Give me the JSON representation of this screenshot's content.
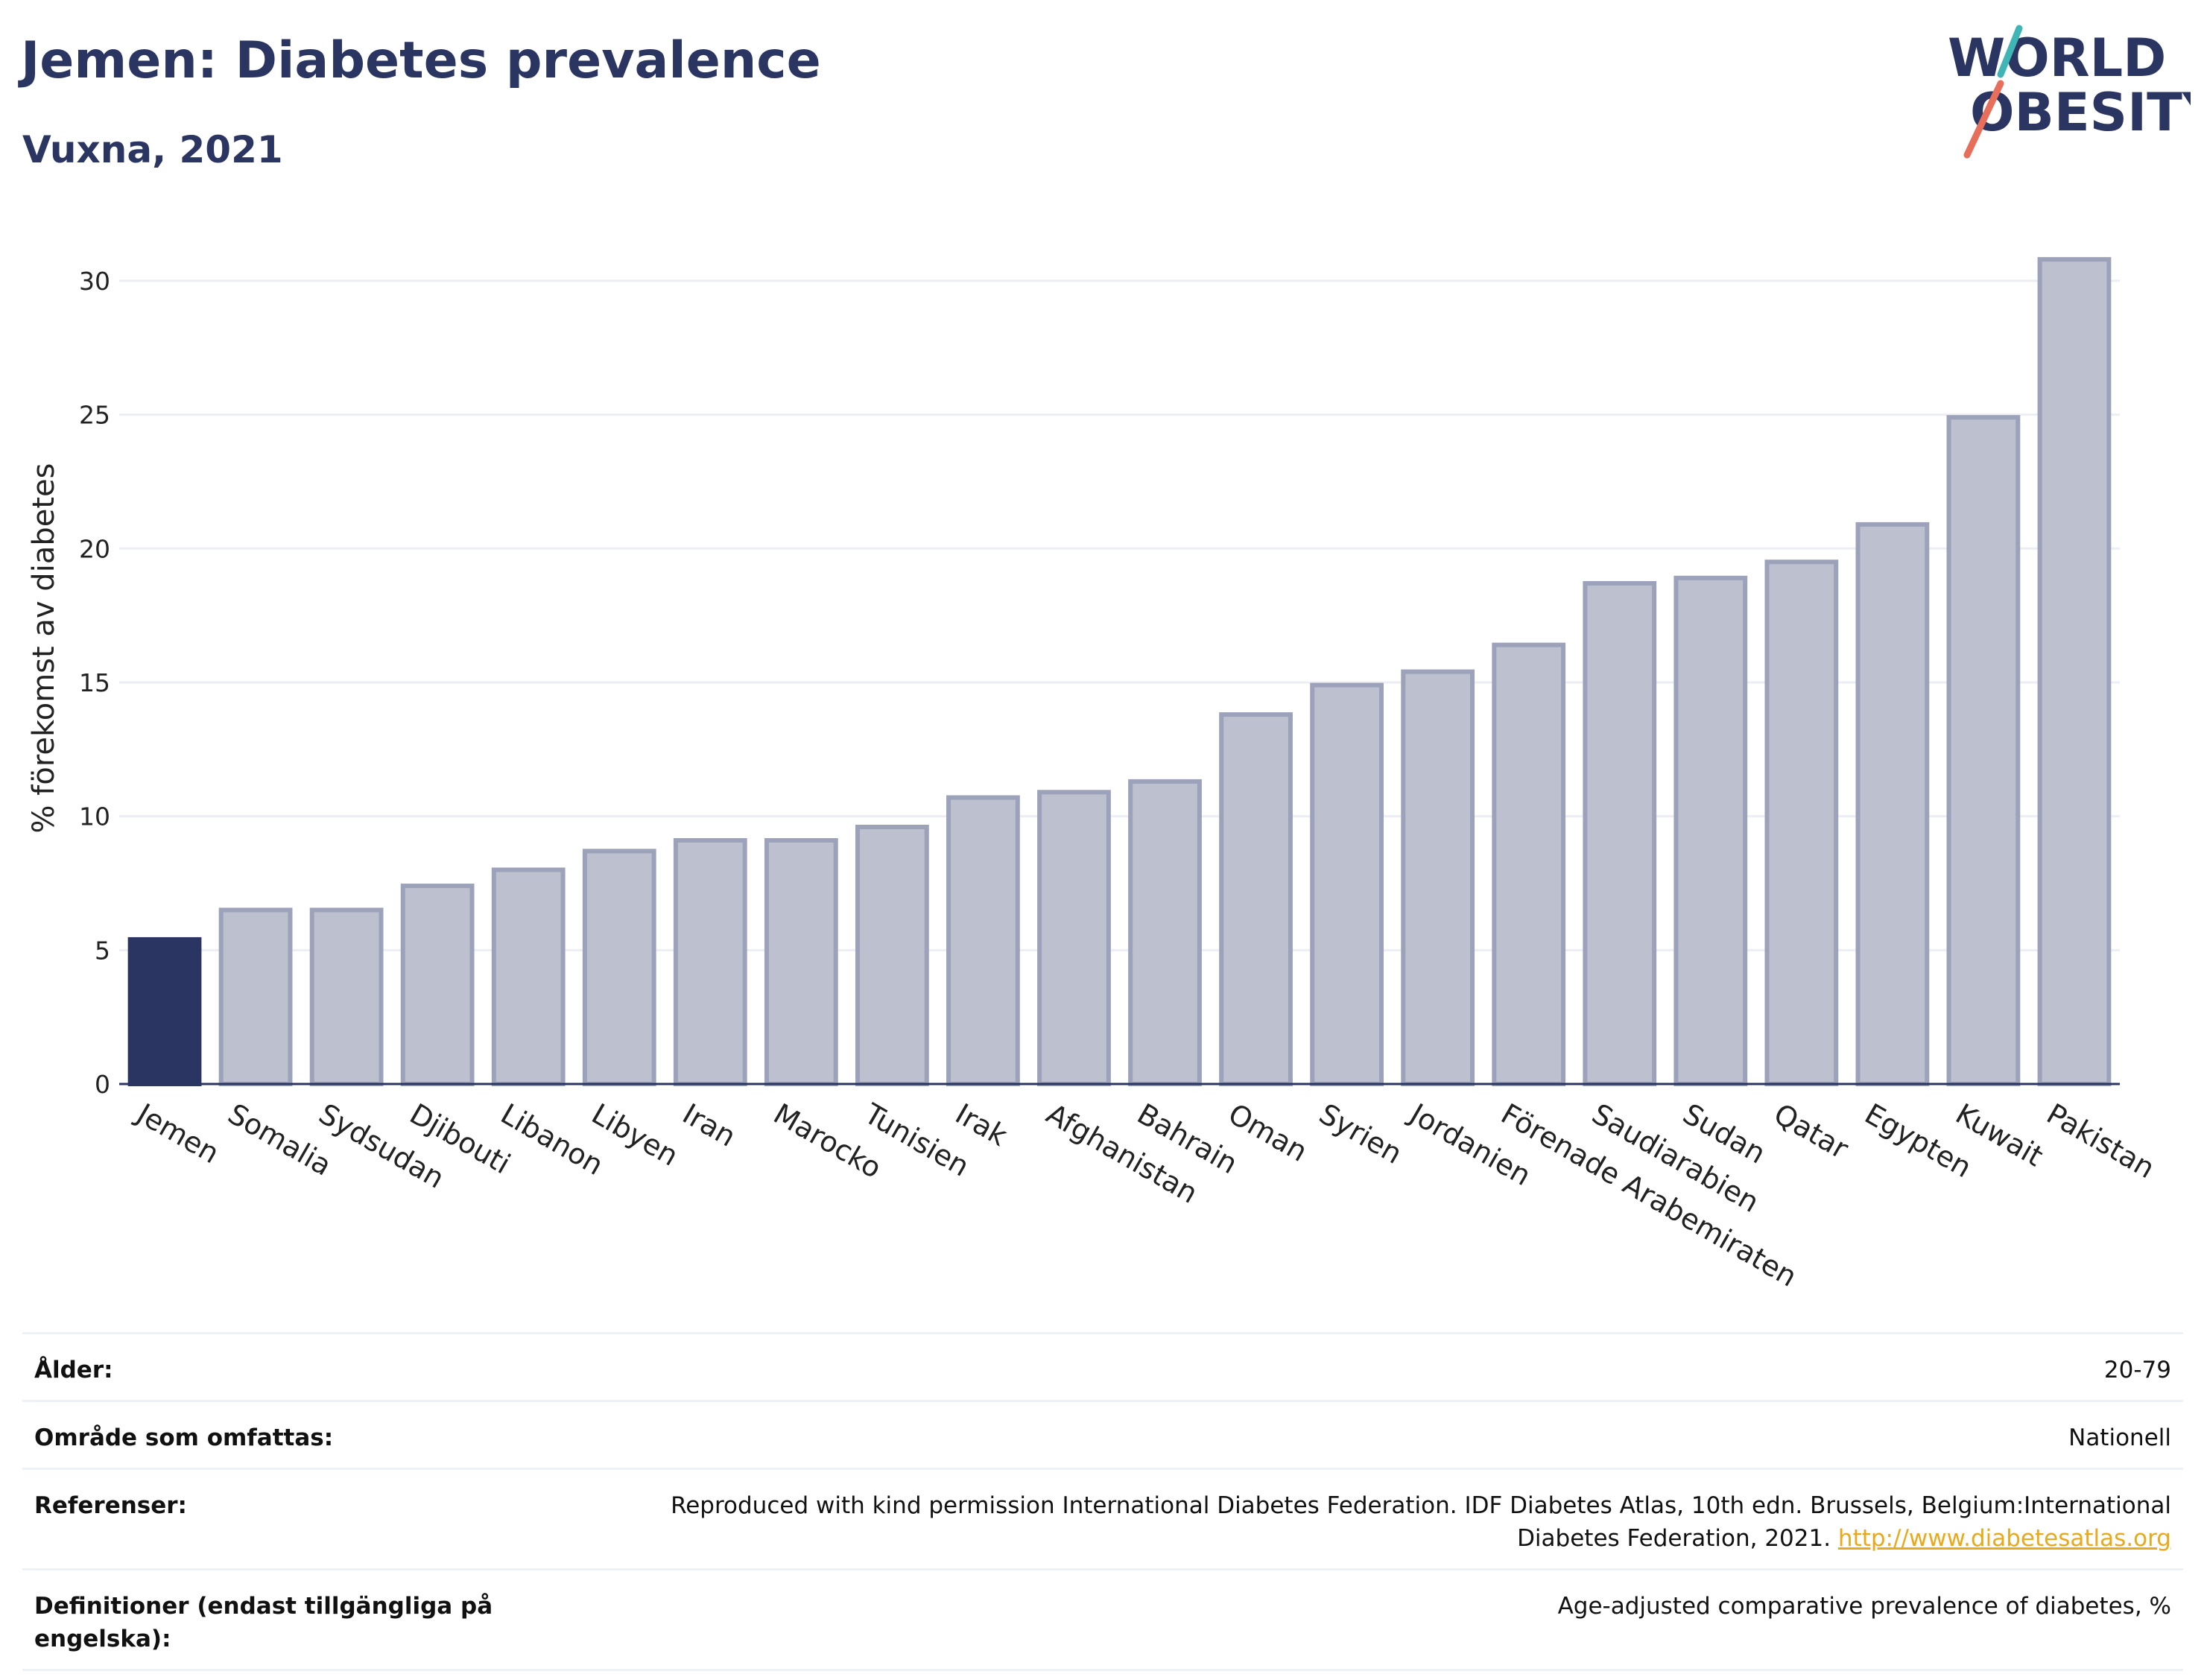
{
  "header": {
    "title": "Jemen: Diabetes prevalence",
    "subtitle": "Vuxna, 2021"
  },
  "logo": {
    "line1": "WORLD",
    "line2": "OBESITY"
  },
  "colors": {
    "highlight": "#2b3561",
    "bar_fill": "#bcc0cf",
    "bar_stroke": "#9ba2b9",
    "grid": "#eceef3",
    "logo_text": "#2b3561",
    "logo_slash_teal": "#3fb5b5",
    "logo_slash_coral": "#e76e5a"
  },
  "chart_data": {
    "type": "bar",
    "ylabel": "% förekomst av diabetes",
    "ylim": [
      0,
      32
    ],
    "yticks": [
      0,
      5,
      10,
      15,
      20,
      25,
      30
    ],
    "highlight_category": "Jemen",
    "grid": true,
    "categories": [
      "Jemen",
      "Somalia",
      "Sydsudan",
      "Djibouti",
      "Libanon",
      "Libyen",
      "Iran",
      "Marocko",
      "Tunisien",
      "Irak",
      "Afghanistan",
      "Bahrain",
      "Oman",
      "Syrien",
      "Jordanien",
      "Förenade Arabemiraten",
      "Saudiarabien",
      "Sudan",
      "Qatar",
      "Egypten",
      "Kuwait",
      "Pakistan"
    ],
    "values": [
      5.4,
      6.5,
      6.5,
      7.4,
      8.0,
      8.7,
      9.1,
      9.1,
      9.6,
      10.7,
      10.9,
      11.3,
      13.8,
      14.9,
      15.4,
      16.4,
      18.7,
      18.9,
      19.5,
      20.9,
      24.9,
      30.8
    ]
  },
  "meta": [
    {
      "key": "Ålder:",
      "value": "20-79"
    },
    {
      "key": "Område som omfattas:",
      "value": "Nationell"
    },
    {
      "key": "Referenser:",
      "value": "Reproduced with kind permission International Diabetes Federation.  IDF Diabetes Atlas, 10th edn. Brussels, Belgium:International Diabetes Federation, 2021. ",
      "link": "http://www.diabetesatlas.org"
    },
    {
      "key": "Definitioner (endast tillgängliga på engelska):",
      "value": "Age-adjusted comparative prevalence of diabetes, %"
    }
  ]
}
